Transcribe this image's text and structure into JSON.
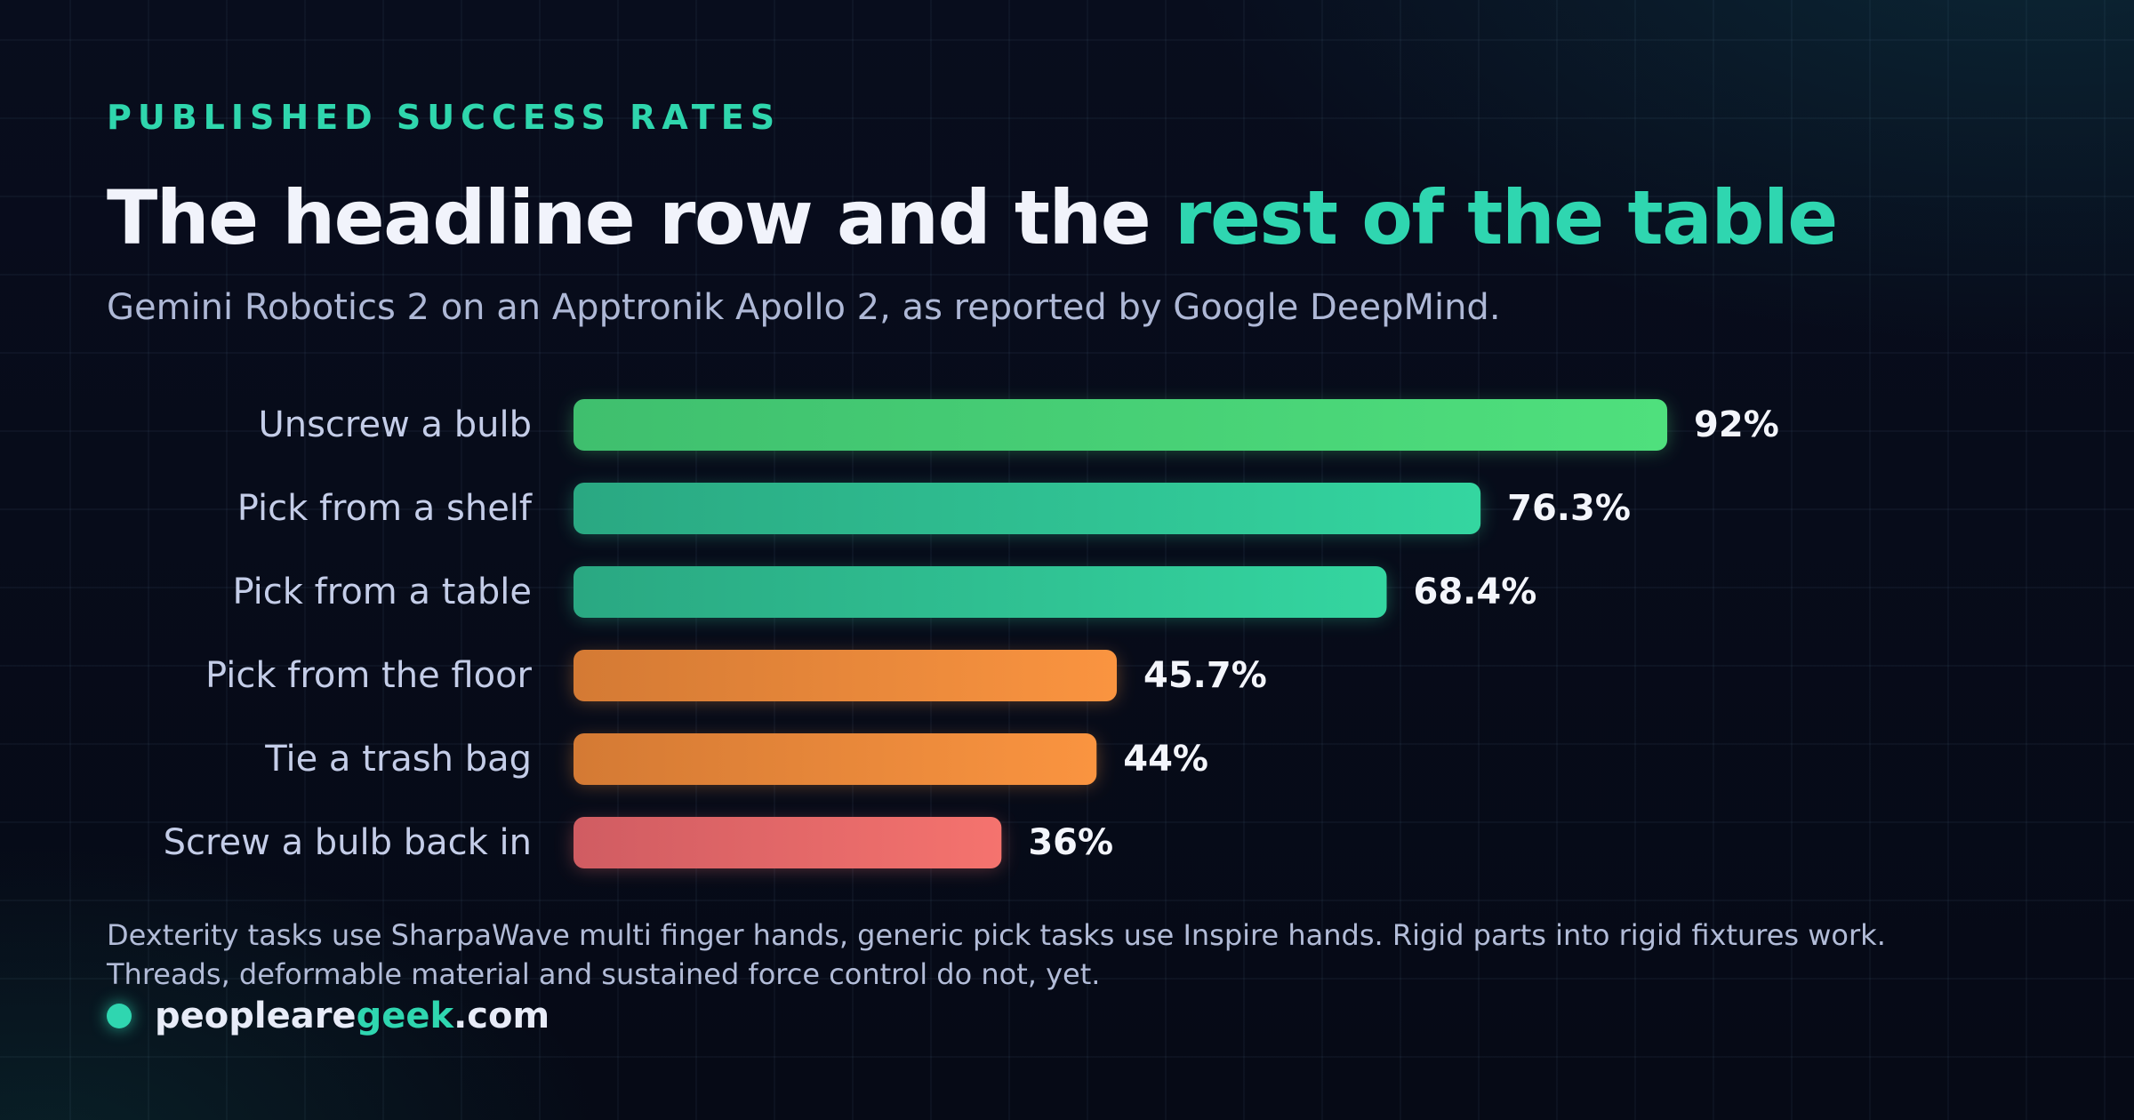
{
  "header": {
    "eyebrow": "PUBLISHED SUCCESS RATES",
    "title_main": "The headline row and the ",
    "title_accent": "rest of the table",
    "subtitle": "Gemini Robotics 2 on an Apptronik Apollo 2, as reported by Google DeepMind."
  },
  "chart_data": {
    "type": "bar",
    "orientation": "horizontal",
    "categories": [
      "Unscrew a bulb",
      "Pick from a shelf",
      "Pick from a table",
      "Pick from the floor",
      "Tie a trash bag",
      "Screw a bulb back in"
    ],
    "values": [
      92,
      76.3,
      68.4,
      45.7,
      44,
      36
    ],
    "value_labels": [
      "92%",
      "76.3%",
      "68.4%",
      "45.7%",
      "44%",
      "36%"
    ],
    "xlim": [
      0,
      100
    ],
    "grid": false,
    "legend": "none",
    "bar_colors": [
      [
        "#3fbf6e",
        "#4fe07d"
      ],
      [
        "#2aa882",
        "#34d6a0"
      ],
      [
        "#2aa882",
        "#34d6a0"
      ],
      [
        "#d47a34",
        "#fa9440"
      ],
      [
        "#d47a34",
        "#fa9440"
      ],
      [
        "#d05c62",
        "#f5736e"
      ]
    ]
  },
  "footnote": {
    "line1": "Dexterity tasks use SharpaWave multi finger hands, generic pick tasks use Inspire hands. Rigid parts into rigid fixtures work.",
    "line2": "Threads, deformable material and sustained force control do not, yet."
  },
  "brand": {
    "prefix": "peopleare",
    "accent": "geek",
    "suffix": ".com"
  },
  "colors": {
    "accent": "#2fd6b0",
    "background": "#070b18"
  }
}
